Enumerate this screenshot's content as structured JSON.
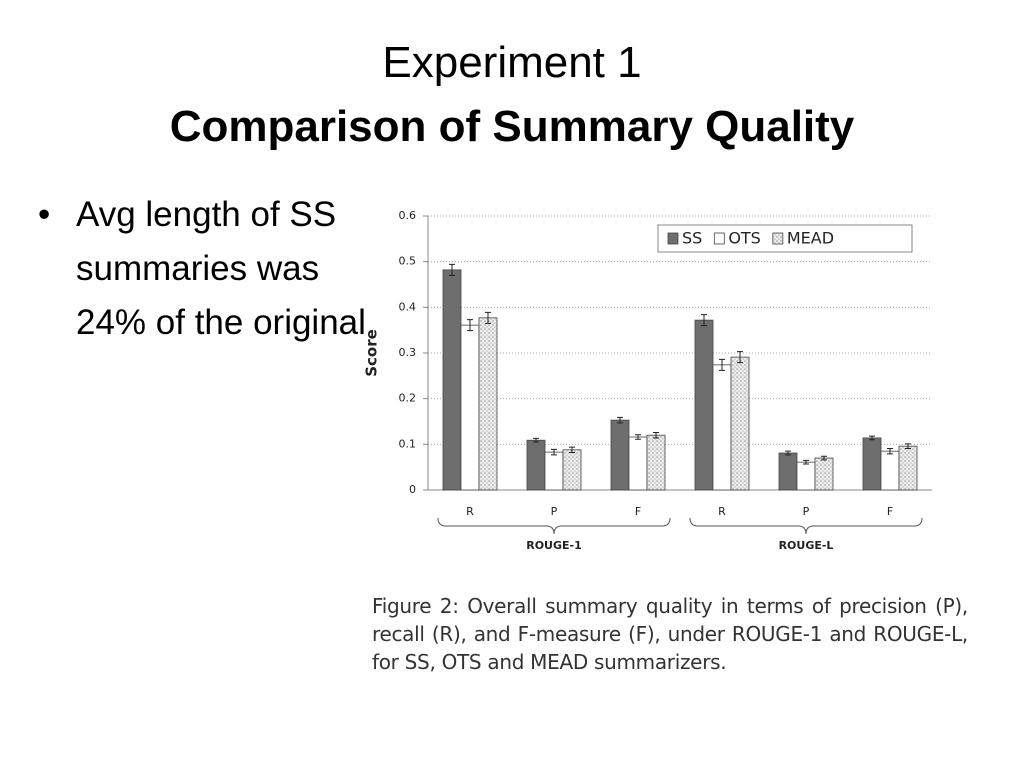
{
  "title": {
    "line1": "Experiment 1",
    "line2": "Comparison of Summary Quality"
  },
  "bullets": [
    "Avg length of SS summaries was 24% of the original"
  ],
  "figure_caption": "Figure 2: Overall summary quality in terms of precision (P), recall (R), and F-measure (F), under ROUGE-1 and ROUGE-L, for SS, OTS and MEAD summarizers.",
  "chart_data": {
    "type": "bar",
    "y_label": "Score",
    "categories": [
      "R",
      "P",
      "F",
      "R",
      "P",
      "F"
    ],
    "groups": [
      "ROUGE-1",
      "ROUGE-L"
    ],
    "series": [
      {
        "name": "SS",
        "color": "#6e6e6e",
        "values": [
          0.482,
          0.109,
          0.153,
          0.372,
          0.081,
          0.114
        ],
        "errors": [
          0.012,
          0.004,
          0.006,
          0.012,
          0.004,
          0.004
        ]
      },
      {
        "name": "OTS",
        "color": "#ffffff",
        "values": [
          0.361,
          0.083,
          0.116,
          0.274,
          0.061,
          0.085
        ],
        "errors": [
          0.012,
          0.006,
          0.005,
          0.012,
          0.004,
          0.006
        ]
      },
      {
        "name": "MEAD",
        "color": "#e4e4e4",
        "pattern": "dots",
        "values": [
          0.377,
          0.088,
          0.12,
          0.291,
          0.07,
          0.096
        ],
        "errors": [
          0.012,
          0.006,
          0.006,
          0.012,
          0.004,
          0.005
        ]
      }
    ],
    "ylim": [
      0,
      0.6
    ],
    "yticks": [
      0,
      0.1,
      0.2,
      0.3,
      0.4,
      0.5,
      0.6
    ],
    "grid": true,
    "legend": "top-right"
  }
}
